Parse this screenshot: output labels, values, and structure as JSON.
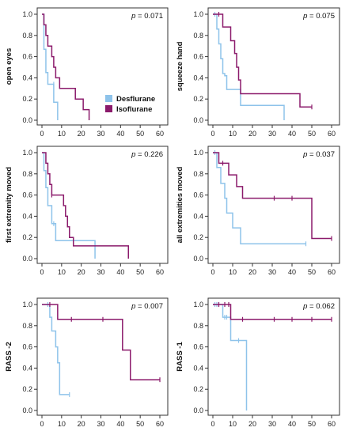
{
  "colors": {
    "desflurane": "#8ec3ea",
    "isoflurane": "#8b1a6b",
    "axis": "#333333"
  },
  "legend": [
    {
      "key": "desflurane",
      "label": "Desflurane"
    },
    {
      "key": "isoflurane",
      "label": "Isoflurane"
    }
  ],
  "chart_data": [
    {
      "type": "line",
      "step": "survival",
      "ylabel": "open eyes",
      "p_prefix": "p",
      "p_value": " = 0.071",
      "xlim": [
        0,
        60
      ],
      "ylim": [
        0,
        1
      ],
      "xticks": [
        "0",
        "10",
        "20",
        "30",
        "40",
        "50",
        "60"
      ],
      "yticks": [
        "0.0",
        "0.2",
        "0.4",
        "0.6",
        "0.8",
        "1.0"
      ],
      "series": [
        {
          "key": "desflurane",
          "label": "Desflurane",
          "steps": [
            [
              0,
              1.0
            ],
            [
              1,
              0.67
            ],
            [
              2,
              0.45
            ],
            [
              3,
              0.34
            ],
            [
              6,
              0.17
            ],
            [
              8,
              0.0
            ]
          ],
          "end": 8,
          "censor": [
            [
              6,
              0.34
            ]
          ]
        },
        {
          "key": "isoflurane",
          "label": "Isoflurane",
          "steps": [
            [
              0,
              1.0
            ],
            [
              1,
              0.9
            ],
            [
              2,
              0.8
            ],
            [
              3,
              0.7
            ],
            [
              5,
              0.6
            ],
            [
              6,
              0.5
            ],
            [
              7,
              0.4
            ],
            [
              9,
              0.3
            ],
            [
              17,
              0.2
            ],
            [
              21,
              0.1
            ],
            [
              24,
              0.0
            ]
          ],
          "end": 24,
          "censor": []
        }
      ]
    },
    {
      "type": "line",
      "step": "survival",
      "ylabel": "squeeze hand",
      "p_prefix": "p",
      "p_value": " = 0.075",
      "xlim": [
        0,
        60
      ],
      "ylim": [
        0,
        1
      ],
      "xticks": [
        "0",
        "10",
        "20",
        "30",
        "40",
        "50",
        "60"
      ],
      "yticks": [
        "0.0",
        "0.2",
        "0.4",
        "0.6",
        "0.8",
        "1.0"
      ],
      "series": [
        {
          "key": "desflurane",
          "label": "Desflurane",
          "steps": [
            [
              0,
              1.0
            ],
            [
              2,
              0.86
            ],
            [
              3,
              0.72
            ],
            [
              4,
              0.58
            ],
            [
              5,
              0.44
            ],
            [
              6,
              0.42
            ],
            [
              7,
              0.29
            ],
            [
              14,
              0.14
            ],
            [
              36,
              0.0
            ]
          ],
          "end": 36,
          "censor": [
            [
              1,
              1.0
            ]
          ]
        },
        {
          "key": "isoflurane",
          "label": "Isoflurane",
          "steps": [
            [
              0,
              1.0
            ],
            [
              5,
              0.88
            ],
            [
              9,
              0.75
            ],
            [
              11,
              0.63
            ],
            [
              12,
              0.5
            ],
            [
              13,
              0.38
            ],
            [
              14,
              0.25
            ],
            [
              44,
              0.125
            ]
          ],
          "end": 50,
          "censor": [
            [
              3,
              1.0
            ],
            [
              50,
              0.125
            ]
          ]
        }
      ]
    },
    {
      "type": "line",
      "step": "survival",
      "ylabel": "first extremity moved",
      "p_prefix": "p",
      "p_value": " = 0.226",
      "xlim": [
        0,
        60
      ],
      "ylim": [
        0,
        1
      ],
      "xticks": [
        "0",
        "10",
        "20",
        "30",
        "40",
        "50",
        "60"
      ],
      "yticks": [
        "0.0",
        "0.2",
        "0.4",
        "0.6",
        "0.8",
        "1.0"
      ],
      "series": [
        {
          "key": "desflurane",
          "label": "Desflurane",
          "steps": [
            [
              0,
              1.0
            ],
            [
              1,
              0.83
            ],
            [
              2,
              0.67
            ],
            [
              3,
              0.5
            ],
            [
              5,
              0.33
            ],
            [
              7,
              0.17
            ],
            [
              27,
              0.0
            ]
          ],
          "end": 27,
          "censor": [
            [
              6,
              0.33
            ]
          ]
        },
        {
          "key": "isoflurane",
          "label": "Isoflurane",
          "steps": [
            [
              0,
              1.0
            ],
            [
              2,
              0.9
            ],
            [
              3,
              0.8
            ],
            [
              4,
              0.7
            ],
            [
              5,
              0.6
            ],
            [
              11,
              0.5
            ],
            [
              12,
              0.4
            ],
            [
              13,
              0.3
            ],
            [
              14,
              0.2
            ],
            [
              16,
              0.12
            ],
            [
              44,
              0.0
            ]
          ],
          "end": 44,
          "censor": [
            [
              5,
              0.6
            ]
          ]
        }
      ]
    },
    {
      "type": "line",
      "step": "survival",
      "ylabel": "all extremities moved",
      "p_prefix": "p",
      "p_value": " = 0.037",
      "xlim": [
        0,
        60
      ],
      "ylim": [
        0,
        1
      ],
      "xticks": [
        "0",
        "10",
        "20",
        "30",
        "40",
        "50",
        "60"
      ],
      "yticks": [
        "0.0",
        "0.2",
        "0.4",
        "0.6",
        "0.8",
        "1.0"
      ],
      "series": [
        {
          "key": "desflurane",
          "label": "Desflurane",
          "steps": [
            [
              0,
              1.0
            ],
            [
              2,
              0.86
            ],
            [
              4,
              0.71
            ],
            [
              6,
              0.57
            ],
            [
              7,
              0.43
            ],
            [
              10,
              0.29
            ],
            [
              14,
              0.14
            ]
          ],
          "end": 47,
          "censor": [
            [
              1,
              1.0
            ],
            [
              47,
              0.14
            ]
          ]
        },
        {
          "key": "isoflurane",
          "label": "Isoflurane",
          "steps": [
            [
              0,
              1.0
            ],
            [
              3,
              0.9
            ],
            [
              8,
              0.79
            ],
            [
              12,
              0.68
            ],
            [
              15,
              0.57
            ],
            [
              50,
              0.19
            ]
          ],
          "end": 60,
          "censor": [
            [
              5,
              0.9
            ],
            [
              31,
              0.57
            ],
            [
              40,
              0.57
            ],
            [
              60,
              0.19
            ]
          ]
        }
      ]
    },
    {
      "type": "line",
      "step": "survival",
      "ylabel": "RASS -2",
      "p_prefix": "p",
      "p_value": " = 0.007",
      "xlim": [
        0,
        60
      ],
      "ylim": [
        0,
        1
      ],
      "xticks": [
        "0",
        "10",
        "20",
        "30",
        "40",
        "50",
        "60"
      ],
      "yticks": [
        "0.0",
        "0.2",
        "0.4",
        "0.6",
        "0.8",
        "1.0"
      ],
      "series": [
        {
          "key": "desflurane",
          "label": "Desflurane",
          "steps": [
            [
              0,
              1.0
            ],
            [
              4,
              0.88
            ],
            [
              5,
              0.75
            ],
            [
              7,
              0.6
            ],
            [
              8,
              0.45
            ],
            [
              9,
              0.15
            ]
          ],
          "end": 14,
          "censor": [
            [
              3,
              1.0
            ],
            [
              14,
              0.15
            ]
          ]
        },
        {
          "key": "isoflurane",
          "label": "Isoflurane",
          "steps": [
            [
              0,
              1.0
            ],
            [
              8,
              0.86
            ],
            [
              41,
              0.57
            ],
            [
              45,
              0.29
            ]
          ],
          "end": 60,
          "censor": [
            [
              4,
              1.0
            ],
            [
              15,
              0.86
            ],
            [
              31,
              0.86
            ],
            [
              60,
              0.29
            ]
          ]
        }
      ]
    },
    {
      "type": "line",
      "step": "survival",
      "ylabel": "RASS -1",
      "p_prefix": "p",
      "p_value": " = 0.062",
      "xlim": [
        0,
        60
      ],
      "ylim": [
        0,
        1
      ],
      "xticks": [
        "0",
        "10",
        "20",
        "30",
        "40",
        "50",
        "60"
      ],
      "yticks": [
        "0.0",
        "0.2",
        "0.4",
        "0.6",
        "0.8",
        "1.0"
      ],
      "series": [
        {
          "key": "desflurane",
          "label": "Desflurane",
          "steps": [
            [
              0,
              1.0
            ],
            [
              5,
              0.88
            ],
            [
              9,
              0.66
            ],
            [
              17,
              0.0
            ]
          ],
          "end": 17,
          "censor": [
            [
              1,
              1.0
            ],
            [
              2,
              1.0
            ],
            [
              6,
              0.88
            ],
            [
              7,
              0.88
            ],
            [
              13,
              0.66
            ]
          ]
        },
        {
          "key": "isoflurane",
          "label": "Isoflurane",
          "steps": [
            [
              0,
              1.0
            ],
            [
              9,
              0.86
            ]
          ],
          "end": 60,
          "censor": [
            [
              3,
              1.0
            ],
            [
              6,
              1.0
            ],
            [
              8,
              1.0
            ],
            [
              15,
              0.86
            ],
            [
              31,
              0.86
            ],
            [
              40,
              0.86
            ],
            [
              50,
              0.86
            ],
            [
              60,
              0.86
            ]
          ]
        }
      ]
    }
  ]
}
